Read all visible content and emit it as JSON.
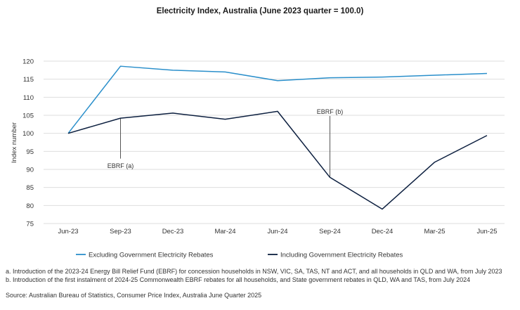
{
  "chart_data": {
    "type": "line",
    "title": "Electricity Index, Australia (June 2023 quarter = 100.0)",
    "xlabel": "",
    "ylabel": "Index number",
    "ylim": [
      75,
      120
    ],
    "yticks": [
      75,
      80,
      85,
      90,
      95,
      100,
      105,
      110,
      115,
      120
    ],
    "grid": "horizontal",
    "legend_position": "bottom",
    "categories": [
      "Jun-23",
      "Sep-23",
      "Dec-23",
      "Mar-24",
      "Jun-24",
      "Sep-24",
      "Dec-24",
      "Mar-25",
      "Jun-25"
    ],
    "series": [
      {
        "name": "Excluding Government Electricity Rebates",
        "color": "#2a8fcb",
        "values": [
          100.0,
          118.6,
          117.5,
          117.0,
          114.6,
          115.4,
          115.6,
          116.1,
          116.6
        ]
      },
      {
        "name": "Including Government Electricity Rebates",
        "color": "#0c1f3f",
        "values": [
          100.0,
          104.2,
          105.6,
          103.9,
          106.1,
          87.8,
          79.0,
          92.0,
          99.4
        ]
      }
    ],
    "annotations": [
      {
        "label": "EBRF (a)",
        "category_index": 1,
        "value_top": 104.2,
        "value_bottom": 93.0,
        "label_value": 91.0,
        "placement": "below"
      },
      {
        "label": "EBRF (b)",
        "category_index": 5,
        "value_top": 104.8,
        "value_bottom": 87.8,
        "label_value": 106.0,
        "placement": "above"
      }
    ]
  },
  "notes": {
    "note_a": "a. Introduction of the 2023-24 Energy Bill Relief Fund (EBRF) for concession households in NSW, VIC, SA, TAS, NT and ACT, and all households in QLD and WA, from July 2023",
    "note_b": "b. Introduction of the first instalment of 2024-25 Commonwealth EBRF rebates for all households, and State government rebates in QLD, WA and TAS, from July 2024",
    "source": "Source: Australian Bureau of Statistics, Consumer Price Index, Australia June Quarter 2025"
  }
}
